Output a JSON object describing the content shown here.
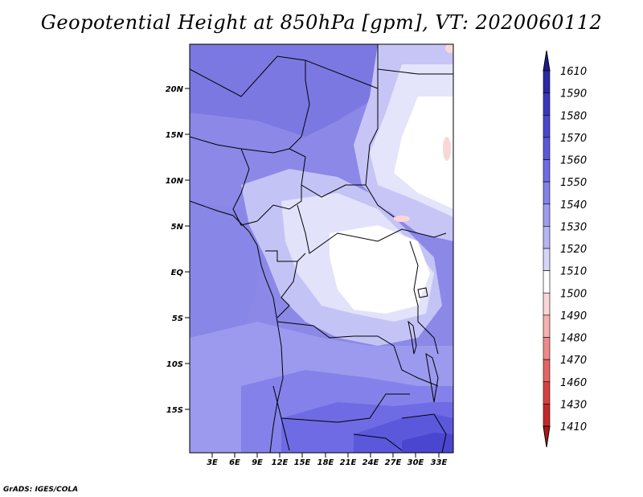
{
  "title": "Geopotential Height at 850hPa [gpm], VT: 2020060112",
  "footer": "GrADS: IGES/COLA",
  "map": {
    "lat_labels": [
      "20N",
      "15N",
      "10N",
      "5N",
      "EQ",
      "5S",
      "10S",
      "15S"
    ],
    "lon_labels": [
      "3E",
      "6E",
      "9E",
      "12E",
      "15E",
      "18E",
      "21E",
      "24E",
      "27E",
      "30E",
      "33E"
    ]
  },
  "colorbar": {
    "levels": [
      "1610",
      "1590",
      "1580",
      "1570",
      "1560",
      "1550",
      "1540",
      "1530",
      "1520",
      "1510",
      "1500",
      "1490",
      "1480",
      "1470",
      "1460",
      "1430",
      "1410"
    ],
    "colors": [
      "#1e1a8c",
      "#2b27a6",
      "#3a36c0",
      "#4a46d0",
      "#5b58dc",
      "#6e6be4",
      "#8482ea",
      "#9d9cef",
      "#b7b6f4",
      "#d6d6f9",
      "#ffffff",
      "#fbd6d6",
      "#f6b0b0",
      "#ee8a8a",
      "#e46464",
      "#d84040",
      "#c42828",
      "#a81818"
    ]
  }
}
